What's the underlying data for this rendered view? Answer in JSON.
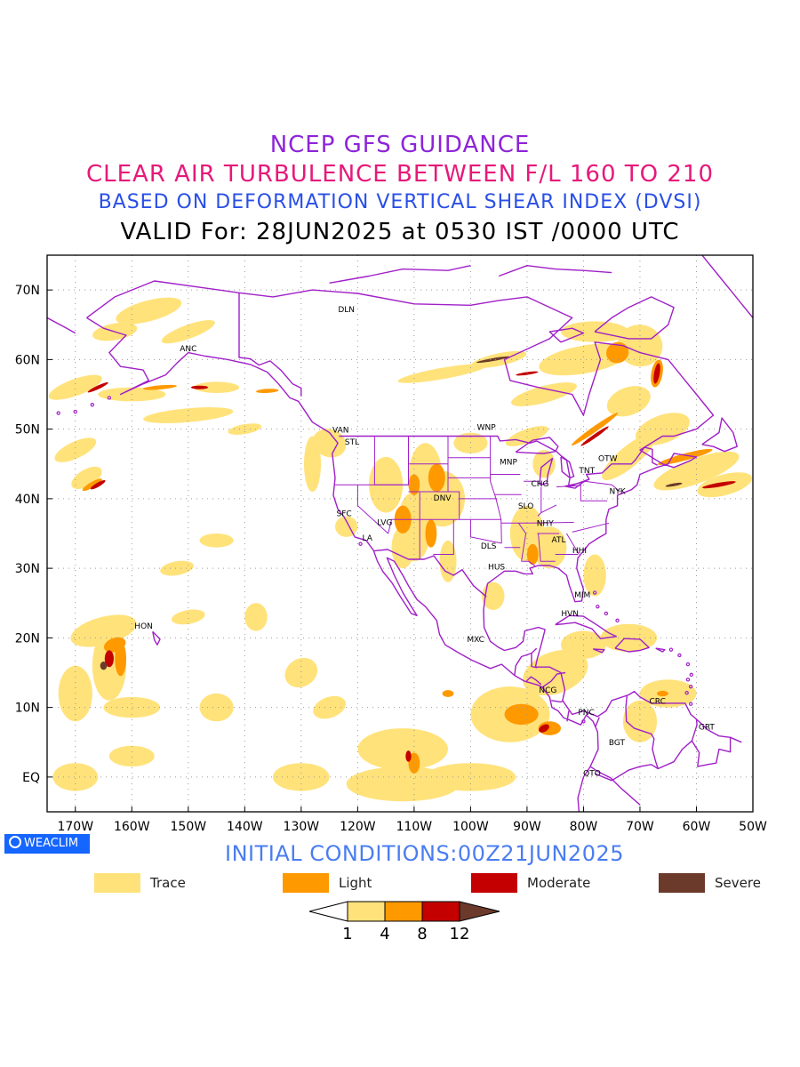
{
  "titles": {
    "line1": "NCEP GFS GUIDANCE",
    "line2": "CLEAR AIR TURBULENCE BETWEEN F/L 160 TO 210",
    "line3": "BASED ON DEFORMATION VERTICAL SHEAR INDEX (DVSI)",
    "line4": "VALID For: 28JUN2025 at 0530 IST /0000 UTC"
  },
  "map": {
    "lon_range": [
      -175,
      -50
    ],
    "lat_range": [
      -5,
      75
    ],
    "lat_ticks": [
      {
        "value": 70,
        "label": "70N"
      },
      {
        "value": 60,
        "label": "60N"
      },
      {
        "value": 50,
        "label": "50N"
      },
      {
        "value": 40,
        "label": "40N"
      },
      {
        "value": 30,
        "label": "30N"
      },
      {
        "value": 20,
        "label": "20N"
      },
      {
        "value": 10,
        "label": "10N"
      },
      {
        "value": 0,
        "label": "EQ"
      }
    ],
    "lon_ticks": [
      {
        "value": -170,
        "label": "170W"
      },
      {
        "value": -160,
        "label": "160W"
      },
      {
        "value": -150,
        "label": "150W"
      },
      {
        "value": -140,
        "label": "140W"
      },
      {
        "value": -130,
        "label": "130W"
      },
      {
        "value": -120,
        "label": "120W"
      },
      {
        "value": -110,
        "label": "110W"
      },
      {
        "value": -100,
        "label": "100W"
      },
      {
        "value": -90,
        "label": "90W"
      },
      {
        "value": -80,
        "label": "80W"
      },
      {
        "value": -70,
        "label": "70W"
      },
      {
        "value": -60,
        "label": "60W"
      },
      {
        "value": -50,
        "label": "50W"
      }
    ],
    "grid": true,
    "colors": {
      "border": "#a020c8",
      "trace": "#ffe27a",
      "light": "#ff9900",
      "moderate": "#c40000",
      "severe": "#6b3a2a"
    },
    "stations": [
      {
        "code": "ANC",
        "lon": -150,
        "lat": 61.2
      },
      {
        "code": "DLN",
        "lon": -122,
        "lat": 66.8
      },
      {
        "code": "VAN",
        "lon": -123,
        "lat": 49.5
      },
      {
        "code": "STL",
        "lon": -121,
        "lat": 47.8
      },
      {
        "code": "SFC",
        "lon": -122.4,
        "lat": 37.5
      },
      {
        "code": "LA",
        "lon": -118.3,
        "lat": 34
      },
      {
        "code": "LVG",
        "lon": -115.2,
        "lat": 36.2
      },
      {
        "code": "DNV",
        "lon": -105,
        "lat": 39.7
      },
      {
        "code": "WNP",
        "lon": -97.2,
        "lat": 49.9
      },
      {
        "code": "MNP",
        "lon": -93.3,
        "lat": 44.9
      },
      {
        "code": "CHG",
        "lon": -87.7,
        "lat": 41.8
      },
      {
        "code": "SLO",
        "lon": -90.2,
        "lat": 38.6
      },
      {
        "code": "NHY",
        "lon": -86.8,
        "lat": 36.1
      },
      {
        "code": "ATL",
        "lon": -84.4,
        "lat": 33.7
      },
      {
        "code": "DLS",
        "lon": -96.8,
        "lat": 32.8
      },
      {
        "code": "HUS",
        "lon": -95.4,
        "lat": 29.8
      },
      {
        "code": "HHI",
        "lon": -80.7,
        "lat": 32.2
      },
      {
        "code": "MIM",
        "lon": -80.2,
        "lat": 25.8
      },
      {
        "code": "HVN",
        "lon": -82.4,
        "lat": 23.1
      },
      {
        "code": "NYK",
        "lon": -74,
        "lat": 40.7
      },
      {
        "code": "TNT",
        "lon": -79.4,
        "lat": 43.7
      },
      {
        "code": "OTW",
        "lon": -75.7,
        "lat": 45.4
      },
      {
        "code": "MXC",
        "lon": -99.1,
        "lat": 19.4
      },
      {
        "code": "NCG",
        "lon": -86.3,
        "lat": 12.1
      },
      {
        "code": "PNC",
        "lon": -79.5,
        "lat": 8.9
      },
      {
        "code": "BGT",
        "lon": -74.1,
        "lat": 4.6
      },
      {
        "code": "QTO",
        "lon": -78.5,
        "lat": 0.2
      },
      {
        "code": "CRC",
        "lon": -66.9,
        "lat": 10.5
      },
      {
        "code": "GRT",
        "lon": -58.2,
        "lat": 6.8
      },
      {
        "code": "HON",
        "lon": -157.9,
        "lat": 21.3
      }
    ]
  },
  "badge": "WEACLIM",
  "initial_conditions": "INITIAL CONDITIONS:00Z21JUN2025",
  "legend": [
    {
      "label": "Trace",
      "color": "#ffe27a"
    },
    {
      "label": "Light",
      "color": "#ff9900"
    },
    {
      "label": "Moderate",
      "color": "#c40000"
    },
    {
      "label": "Severe",
      "color": "#6b3a2a"
    }
  ],
  "colorbar": {
    "ticks": [
      "1",
      "4",
      "8",
      "12"
    ],
    "colors": [
      "#ffe27a",
      "#ff9900",
      "#c40000",
      "#6b3a2a"
    ]
  }
}
